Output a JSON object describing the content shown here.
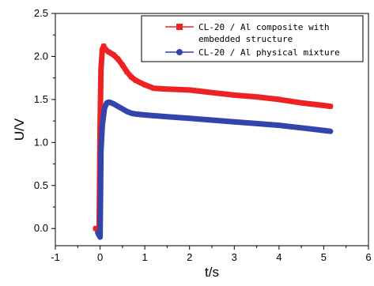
{
  "chart_data": {
    "type": "line",
    "title": "",
    "xlabel": "t/s",
    "ylabel": "U/V",
    "xlim": [
      -1,
      6
    ],
    "ylim": [
      -0.2,
      2.5
    ],
    "xticks": [
      -1,
      0,
      1,
      2,
      3,
      4,
      5,
      6
    ],
    "yticks": [
      0.0,
      0.5,
      1.0,
      1.5,
      2.0,
      2.5
    ],
    "xtick_labels": [
      "-1",
      "0",
      "1",
      "2",
      "3",
      "4",
      "5",
      "6"
    ],
    "ytick_labels": [
      "0.0",
      "0.5",
      "1.0",
      "1.5",
      "2.0",
      "2.5"
    ],
    "grid": false,
    "legend_position": "top-right",
    "series": [
      {
        "name_lines": [
          "CL-20 / Al composite with",
          "embedded structure"
        ],
        "color": "#ee2222",
        "marker": "square",
        "points": [
          [
            -0.1,
            0.0
          ],
          [
            -0.05,
            -0.02
          ],
          [
            -0.02,
            0.0
          ],
          [
            0.0,
            1.2
          ],
          [
            0.02,
            1.85
          ],
          [
            0.05,
            2.08
          ],
          [
            0.08,
            2.12
          ],
          [
            0.12,
            2.08
          ],
          [
            0.2,
            2.05
          ],
          [
            0.3,
            2.02
          ],
          [
            0.4,
            1.97
          ],
          [
            0.5,
            1.9
          ],
          [
            0.6,
            1.82
          ],
          [
            0.7,
            1.76
          ],
          [
            0.8,
            1.72
          ],
          [
            1.0,
            1.67
          ],
          [
            1.2,
            1.63
          ],
          [
            1.5,
            1.62
          ],
          [
            2.0,
            1.61
          ],
          [
            2.5,
            1.58
          ],
          [
            3.0,
            1.55
          ],
          [
            3.5,
            1.53
          ],
          [
            4.0,
            1.5
          ],
          [
            4.5,
            1.46
          ],
          [
            5.0,
            1.43
          ],
          [
            5.15,
            1.42
          ]
        ]
      },
      {
        "name_lines": [
          "CL-20 / Al physical mixture"
        ],
        "color": "#3344aa",
        "marker": "circle",
        "points": [
          [
            -0.05,
            -0.05
          ],
          [
            -0.02,
            -0.08
          ],
          [
            0.0,
            -0.1
          ],
          [
            0.02,
            0.9
          ],
          [
            0.05,
            1.2
          ],
          [
            0.1,
            1.4
          ],
          [
            0.15,
            1.46
          ],
          [
            0.2,
            1.47
          ],
          [
            0.3,
            1.45
          ],
          [
            0.4,
            1.42
          ],
          [
            0.5,
            1.39
          ],
          [
            0.6,
            1.36
          ],
          [
            0.7,
            1.34
          ],
          [
            0.8,
            1.33
          ],
          [
            1.0,
            1.32
          ],
          [
            1.5,
            1.3
          ],
          [
            2.0,
            1.28
          ],
          [
            2.5,
            1.26
          ],
          [
            3.0,
            1.24
          ],
          [
            3.5,
            1.22
          ],
          [
            4.0,
            1.2
          ],
          [
            4.5,
            1.17
          ],
          [
            5.0,
            1.14
          ],
          [
            5.15,
            1.13
          ]
        ]
      }
    ]
  }
}
